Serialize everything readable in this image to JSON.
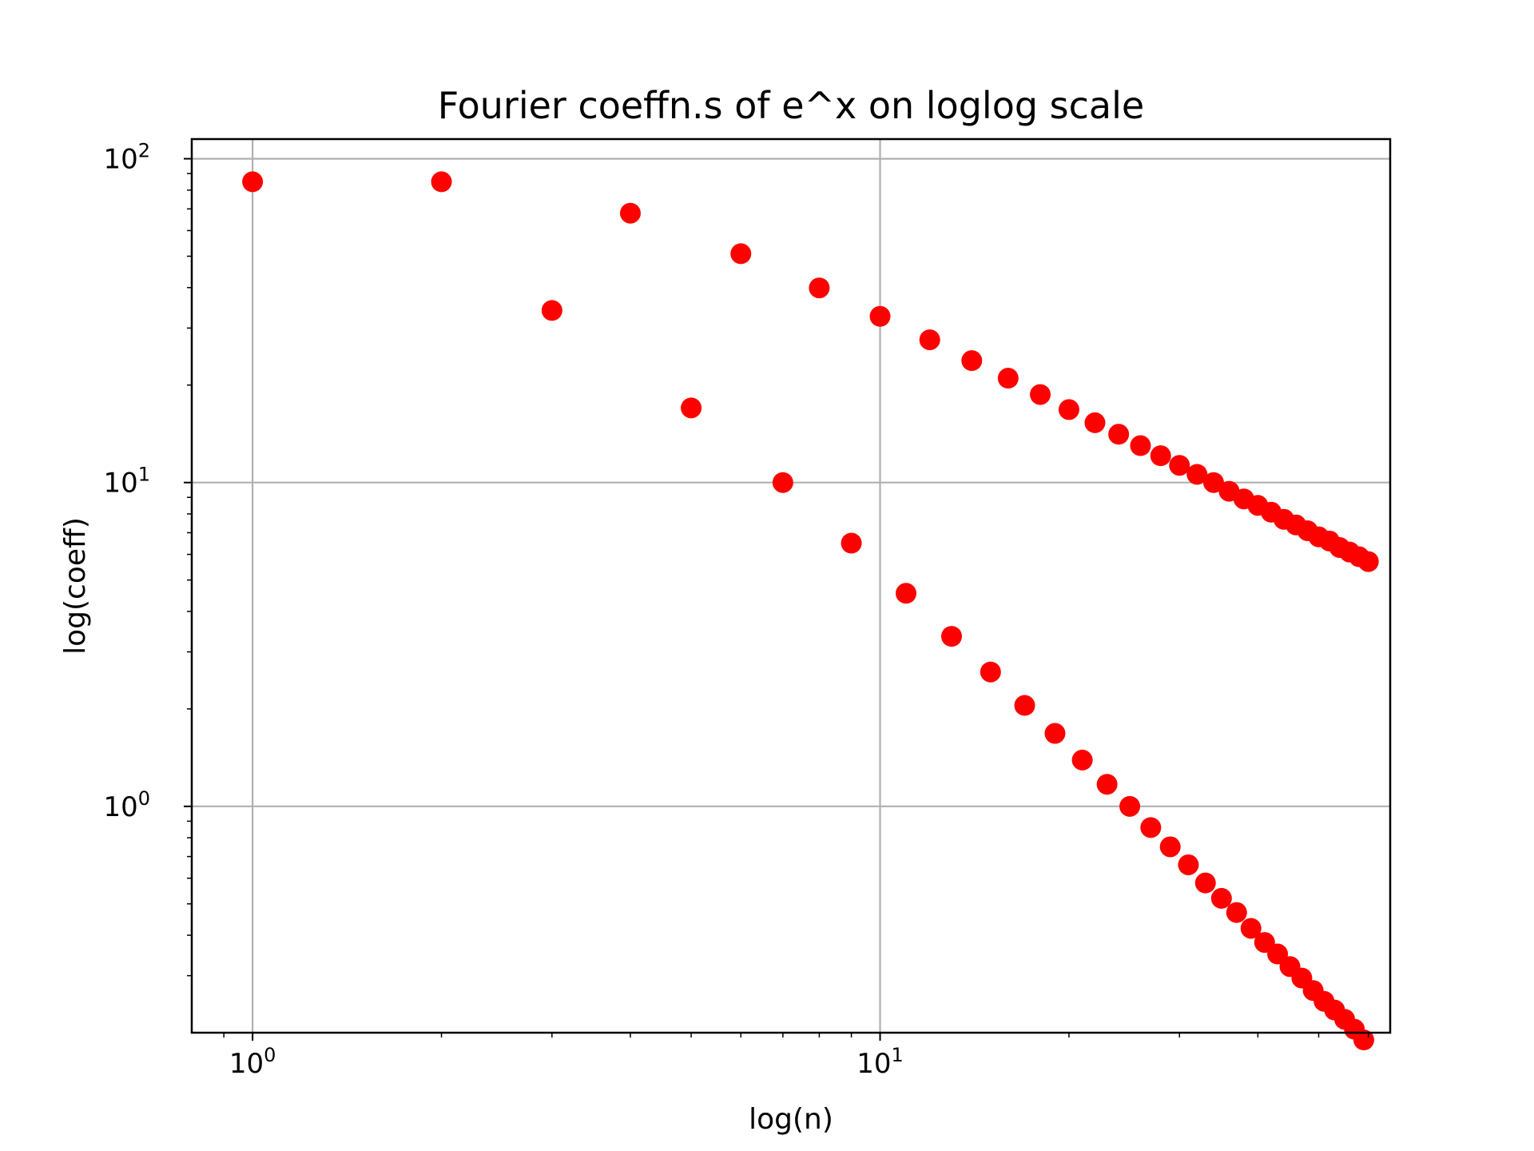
{
  "chart_data": {
    "type": "scatter",
    "title": "Fourier coeffn.s of e^x on loglog scale",
    "xlabel": "log(n)",
    "ylabel": "log(coeff)",
    "xscale": "log",
    "yscale": "log",
    "xlim": [
      0.8,
      65
    ],
    "ylim": [
      0.2,
      115
    ],
    "grid": true,
    "marker_color": "#ff0000",
    "x_ticks": [
      {
        "value": 1,
        "base": "10",
        "exp": "0"
      },
      {
        "value": 10,
        "base": "10",
        "exp": "1"
      }
    ],
    "y_ticks": [
      {
        "value": 1,
        "base": "10",
        "exp": "0"
      },
      {
        "value": 10,
        "base": "10",
        "exp": "1"
      },
      {
        "value": 100,
        "base": "10",
        "exp": "2"
      }
    ],
    "series": [
      {
        "x": [
          1,
          2,
          4,
          6,
          8,
          10,
          12,
          14,
          16,
          18,
          20,
          22,
          24,
          26,
          28,
          30,
          32,
          34,
          36,
          38,
          40,
          42,
          44,
          46,
          48,
          50,
          52,
          54,
          56,
          58,
          60
        ],
        "y": [
          84.9,
          84.9,
          67.9,
          50.9,
          39.9,
          32.6,
          27.6,
          23.8,
          21.0,
          18.7,
          16.8,
          15.3,
          14.1,
          13.0,
          12.1,
          11.3,
          10.6,
          10.0,
          9.4,
          8.9,
          8.5,
          8.1,
          7.7,
          7.4,
          7.1,
          6.8,
          6.6,
          6.3,
          6.1,
          5.9,
          5.7
        ]
      },
      {
        "x": [
          3,
          5,
          7,
          9,
          11,
          13,
          15,
          17,
          19,
          21,
          23,
          25,
          27,
          29,
          31,
          33,
          35,
          37,
          39,
          41,
          43,
          45,
          47,
          49,
          51,
          53,
          55,
          57,
          59
        ],
        "y": [
          34.0,
          17.0,
          10.0,
          6.5,
          4.55,
          3.35,
          2.6,
          2.05,
          1.68,
          1.39,
          1.17,
          1.0,
          0.86,
          0.75,
          0.66,
          0.58,
          0.52,
          0.47,
          0.42,
          0.38,
          0.35,
          0.32,
          0.295,
          0.27,
          0.25,
          0.235,
          0.22,
          0.205,
          0.19
        ]
      }
    ]
  }
}
